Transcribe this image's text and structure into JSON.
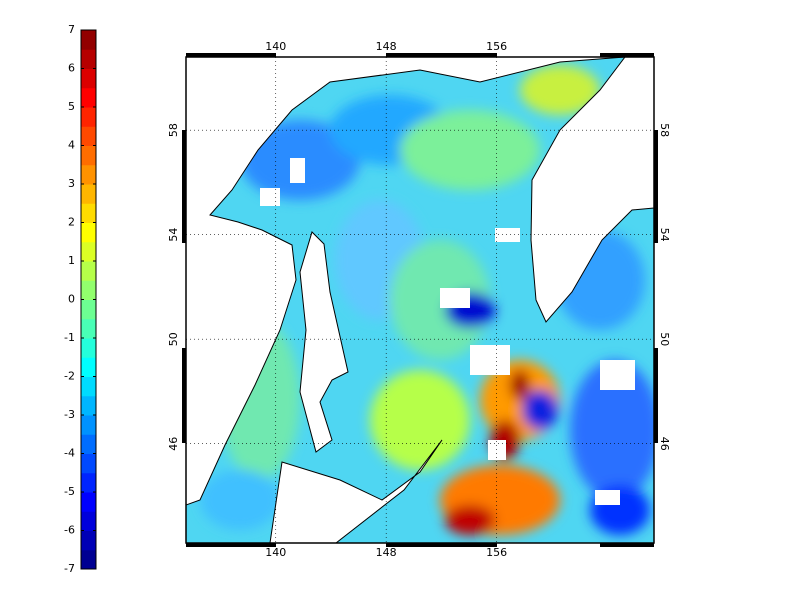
{
  "colorbar": {
    "ticks": [
      -7,
      -6,
      -5,
      -4,
      -3,
      -2,
      -1,
      0,
      1,
      2,
      3,
      4,
      5,
      6,
      7
    ],
    "colors": [
      "#000092",
      "#0000b6",
      "#0000db",
      "#0000ff",
      "#0024ff",
      "#0049ff",
      "#006dff",
      "#0092ff",
      "#00b6ff",
      "#00dbff",
      "#00ffff",
      "#24ffdb",
      "#49ffb6",
      "#6dff92",
      "#92ff6d",
      "#b6ff49",
      "#dbff24",
      "#ffff00",
      "#ffdb00",
      "#ffb600",
      "#ff9200",
      "#ff6d00",
      "#ff4900",
      "#ff2400",
      "#ff0000",
      "#db0000",
      "#b60000",
      "#920000"
    ]
  },
  "map": {
    "xlim": [
      133.5,
      167.4
    ],
    "ylim": [
      42.2,
      60.8
    ],
    "xticks": [
      140,
      148,
      156
    ],
    "yticks": [
      46,
      50,
      54,
      58
    ],
    "grid": true
  }
}
